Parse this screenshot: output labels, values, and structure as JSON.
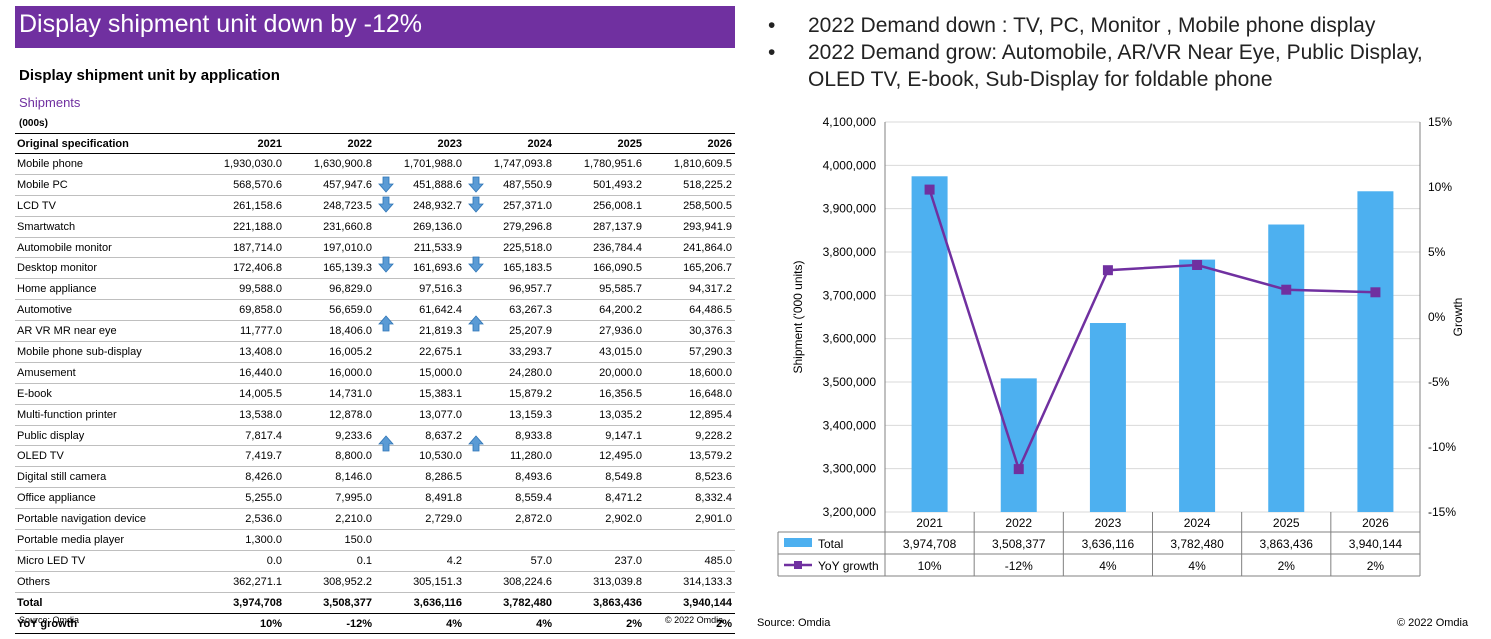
{
  "header": {
    "title": "Display shipment unit down by -12%"
  },
  "table": {
    "title": "Display shipment unit by application",
    "subtitle": "Shipments",
    "unit": "(000s)",
    "columns": [
      "Original specification",
      "2021",
      "2022",
      "2023",
      "2024",
      "2025",
      "2026"
    ],
    "rows": [
      {
        "name": "Mobile phone",
        "values": [
          "1,930,030.0",
          "1,630,900.8",
          "1,701,988.0",
          "1,747,093.8",
          "1,780,951.6",
          "1,810,609.5"
        ]
      },
      {
        "name": "Mobile PC",
        "values": [
          "568,570.6",
          "457,947.6",
          "451,888.6",
          "487,550.9",
          "501,493.2",
          "518,225.2"
        ]
      },
      {
        "name": "LCD TV",
        "values": [
          "261,158.6",
          "248,723.5",
          "248,932.7",
          "257,371.0",
          "256,008.1",
          "258,500.5"
        ]
      },
      {
        "name": "Smartwatch",
        "values": [
          "221,188.0",
          "231,660.8",
          "269,136.0",
          "279,296.8",
          "287,137.9",
          "293,941.9"
        ]
      },
      {
        "name": "Automobile monitor",
        "values": [
          "187,714.0",
          "197,010.0",
          "211,533.9",
          "225,518.0",
          "236,784.4",
          "241,864.0"
        ]
      },
      {
        "name": "Desktop monitor",
        "values": [
          "172,406.8",
          "165,139.3",
          "161,693.6",
          "165,183.5",
          "166,090.5",
          "165,206.7"
        ]
      },
      {
        "name": "Home appliance",
        "values": [
          "99,588.0",
          "96,829.0",
          "97,516.3",
          "96,957.7",
          "95,585.7",
          "94,317.2"
        ]
      },
      {
        "name": "Automotive",
        "values": [
          "69,858.0",
          "56,659.0",
          "61,642.4",
          "63,267.3",
          "64,200.2",
          "64,486.5"
        ]
      },
      {
        "name": "AR VR MR near eye",
        "values": [
          "11,777.0",
          "18,406.0",
          "21,819.3",
          "25,207.9",
          "27,936.0",
          "30,376.3"
        ]
      },
      {
        "name": "Mobile phone sub-display",
        "values": [
          "13,408.0",
          "16,005.2",
          "22,675.1",
          "33,293.7",
          "43,015.0",
          "57,290.3"
        ]
      },
      {
        "name": "Amusement",
        "values": [
          "16,440.0",
          "16,000.0",
          "15,000.0",
          "24,280.0",
          "20,000.0",
          "18,600.0"
        ]
      },
      {
        "name": "E-book",
        "values": [
          "14,005.5",
          "14,731.0",
          "15,383.1",
          "15,879.2",
          "16,356.5",
          "16,648.0"
        ]
      },
      {
        "name": "Multi-function printer",
        "values": [
          "13,538.0",
          "12,878.0",
          "13,077.0",
          "13,159.3",
          "13,035.2",
          "12,895.4"
        ]
      },
      {
        "name": "Public display",
        "values": [
          "7,817.4",
          "9,233.6",
          "8,637.2",
          "8,933.8",
          "9,147.1",
          "9,228.2"
        ]
      },
      {
        "name": "OLED TV",
        "values": [
          "7,419.7",
          "8,800.0",
          "10,530.0",
          "11,280.0",
          "12,495.0",
          "13,579.2"
        ]
      },
      {
        "name": "Digital still camera",
        "values": [
          "8,426.0",
          "8,146.0",
          "8,286.5",
          "8,493.6",
          "8,549.8",
          "8,523.6"
        ]
      },
      {
        "name": "Office appliance",
        "values": [
          "5,255.0",
          "7,995.0",
          "8,491.8",
          "8,559.4",
          "8,471.2",
          "8,332.4"
        ]
      },
      {
        "name": "Portable navigation device",
        "values": [
          "2,536.0",
          "2,210.0",
          "2,729.0",
          "2,872.0",
          "2,902.0",
          "2,901.0"
        ]
      },
      {
        "name": "Portable media player",
        "values": [
          "1,300.0",
          "150.0",
          "",
          "",
          "",
          ""
        ]
      },
      {
        "name": "Micro LED TV",
        "values": [
          "0.0",
          "0.1",
          "4.2",
          "57.0",
          "237.0",
          "485.0"
        ]
      },
      {
        "name": "Others",
        "values": [
          "362,271.1",
          "308,952.2",
          "305,151.3",
          "308,224.6",
          "313,039.8",
          "314,133.3"
        ]
      }
    ],
    "total": {
      "name": "Total",
      "values": [
        "3,974,708",
        "3,508,377",
        "3,636,116",
        "3,782,480",
        "3,863,436",
        "3,940,144"
      ]
    },
    "yoy": {
      "name": "YoY growth",
      "values": [
        "10%",
        "-12%",
        "4%",
        "4%",
        "2%",
        "2%"
      ]
    },
    "source": "Source: Omdia",
    "copyright": "© 2022 Omdia",
    "arrows": [
      {
        "row": 1,
        "col": 2,
        "dir": "down"
      },
      {
        "row": 1,
        "col": 3,
        "dir": "down"
      },
      {
        "row": 2,
        "col": 2,
        "dir": "down"
      },
      {
        "row": 2,
        "col": 3,
        "dir": "down"
      },
      {
        "row": 5,
        "col": 2,
        "dir": "down"
      },
      {
        "row": 5,
        "col": 3,
        "dir": "down"
      },
      {
        "row": 8,
        "col": 2,
        "dir": "up"
      },
      {
        "row": 8,
        "col": 3,
        "dir": "up"
      },
      {
        "row": 14,
        "col": 2,
        "dir": "up"
      },
      {
        "row": 14,
        "col": 3,
        "dir": "up"
      }
    ],
    "arrow_color": "#5b9bd5"
  },
  "bullets": [
    "2022 Demand down : TV, PC, Monitor , Mobile phone display",
    "2022 Demand grow: Automobile, AR/VR Near Eye, Public Display, OLED TV, E-book, Sub-Display for foldable phone"
  ],
  "bullet_symbol": "•",
  "chart_data": {
    "type": "bar",
    "categories": [
      "2021",
      "2022",
      "2023",
      "2024",
      "2025",
      "2026"
    ],
    "series": [
      {
        "name": "Total",
        "type": "bar",
        "axis": "left",
        "values": [
          3974708,
          3508377,
          3636116,
          3782480,
          3863436,
          3940144
        ],
        "labels": [
          "3,974,708",
          "3,508,377",
          "3,636,116",
          "3,782,480",
          "3,863,436",
          "3,940,144"
        ],
        "color": "#4db0f0"
      },
      {
        "name": "YoY growth",
        "type": "line",
        "axis": "right",
        "values": [
          9.8,
          -11.7,
          3.6,
          4.0,
          2.1,
          1.9
        ],
        "labels": [
          "10%",
          "-12%",
          "4%",
          "4%",
          "2%",
          "2%"
        ],
        "color": "#7030a0"
      }
    ],
    "ylabel": "Shipment ('000 units)",
    "y2label": "Growth",
    "ylim": [
      3200000,
      4100000
    ],
    "y2lim": [
      -15,
      15
    ],
    "yticks": [
      "4,100,000",
      "4,000,000",
      "3,900,000",
      "3,800,000",
      "3,700,000",
      "3,600,000",
      "3,500,000",
      "3,400,000",
      "3,300,000",
      "3,200,000"
    ],
    "y2ticks": [
      "15%",
      "10%",
      "5%",
      "0%",
      "-5%",
      "-10%",
      "-15%"
    ],
    "grid": true,
    "data_table": true,
    "source": "Source: Omdia",
    "copyright": "© 2022 Omdia"
  }
}
